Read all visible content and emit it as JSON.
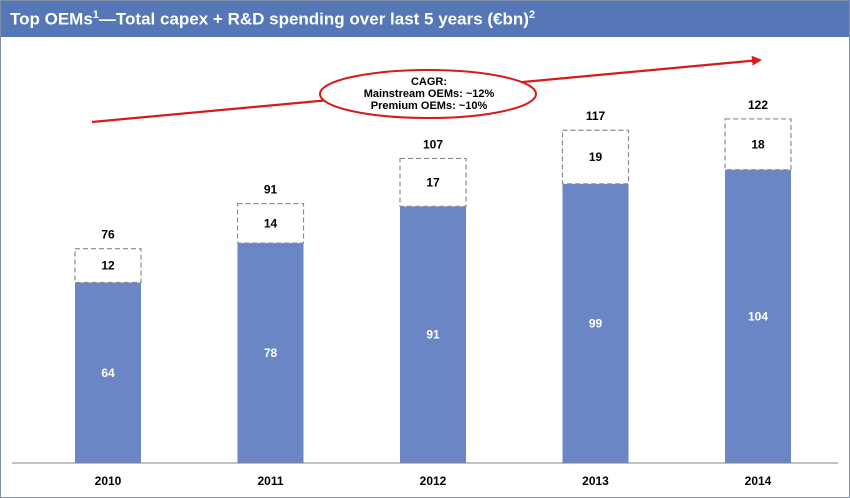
{
  "header": {
    "title_prefix": "Top OEMs",
    "title_sup1": "1",
    "title_main": "—Total capex + R&D spending over last 5 years (€bn)",
    "title_sup2": "2"
  },
  "callout": {
    "title": "CAGR:",
    "line1": "Mainstream OEMs: ~12%",
    "line2": "Premium OEMs: ~10%"
  },
  "colors": {
    "title_bar": "#5577b8",
    "bar_fill": "#6a86c4",
    "trend_arrow": "#d41c1c",
    "dashed_box": "#8c8c8c"
  },
  "chart_data": {
    "type": "bar",
    "stacked": true,
    "categories": [
      "2010",
      "2011",
      "2012",
      "2013",
      "2014"
    ],
    "series": [
      {
        "values": [
          64,
          78,
          91,
          99,
          104
        ]
      },
      {
        "values": [
          12,
          14,
          17,
          19,
          18
        ]
      }
    ],
    "totals": [
      76,
      91,
      107,
      117,
      122
    ],
    "ylim": [
      0,
      130
    ],
    "grid": false,
    "legend": "none",
    "title": "Top OEMs—Total capex + R&D spending over last 5 years (€bn)",
    "xlabel": "",
    "ylabel": ""
  }
}
